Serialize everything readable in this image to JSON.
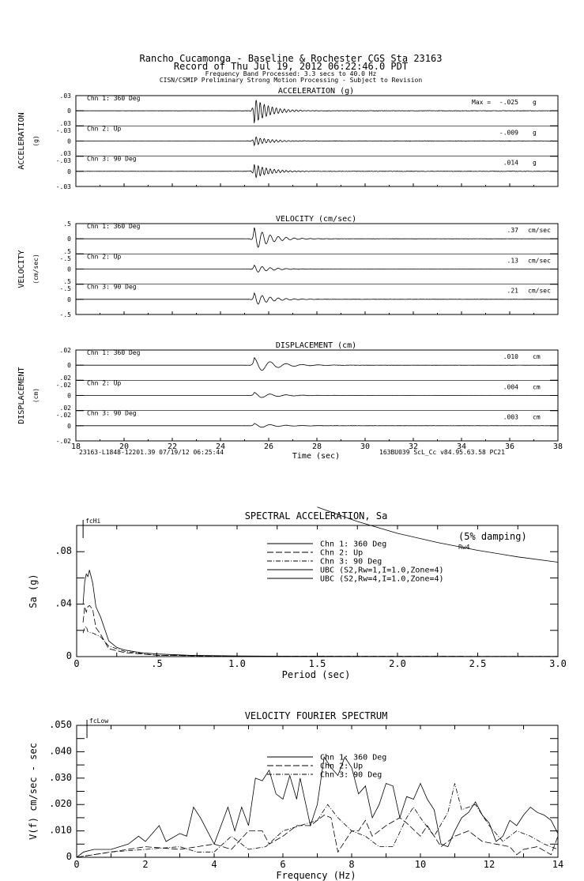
{
  "header": {
    "line1": "Rancho Cucamonga - Baseline & Rochester     CGS Sta 23163",
    "line2": "Record of Thu Jul 19, 2012 06:22:46.0 PDT",
    "line3": "Frequency Band Processed: 3.3 secs to 40.0 Hz",
    "line4": "CISN/CSMIP Preliminary Strong Motion Processing - Subject to Revision"
  },
  "footer": {
    "left": "23163-L1848-12201.39 07/19/12 06:25:44",
    "right": "163BU039  ScL_Cc  v84.95.63.58  PC21"
  },
  "chart_data": [
    {
      "type": "line",
      "title": "ACCELERATION (g)",
      "ylabel": "ACCELERATION",
      "yunit": "(g)",
      "max_prefix": "Max =",
      "ytick_labels": [
        ".03",
        "0",
        "-.03"
      ],
      "ylim": [
        -0.03,
        0.03
      ],
      "xlim": [
        18,
        38
      ],
      "peak_time": 25.4,
      "channels": [
        {
          "name": "Chn 1: 360 Deg",
          "max": "-.025",
          "unit": "g",
          "peak": -0.025
        },
        {
          "name": "Chn 2: Up",
          "max": "-.009",
          "unit": "g",
          "peak": -0.009
        },
        {
          "name": "Chn 3: 90 Deg",
          "max": ".014",
          "unit": "g",
          "peak": 0.014
        }
      ]
    },
    {
      "type": "line",
      "title": "VELOCITY (cm/sec)",
      "ylabel": "VELOCITY",
      "yunit": "(cm/sec)",
      "ytick_labels": [
        ".5",
        "0",
        "-.5"
      ],
      "ylim": [
        -0.5,
        0.5
      ],
      "xlim": [
        18,
        38
      ],
      "peak_time": 25.4,
      "channels": [
        {
          "name": "Chn 1: 360 Deg",
          "max": ".37",
          "unit": "cm/sec",
          "peak": 0.37
        },
        {
          "name": "Chn 2: Up",
          "max": ".13",
          "unit": "cm/sec",
          "peak": 0.13
        },
        {
          "name": "Chn 3: 90 Deg",
          "max": ".21",
          "unit": "cm/sec",
          "peak": 0.21
        }
      ]
    },
    {
      "type": "line",
      "title": "DISPLACEMENT (cm)",
      "ylabel": "DISPLACEMENT",
      "yunit": "(cm)",
      "ytick_labels": [
        ".02",
        "0",
        "-.02"
      ],
      "ylim": [
        -0.02,
        0.02
      ],
      "xlim": [
        18,
        38
      ],
      "xlabel": "Time (sec)",
      "xtick_labels": [
        "18",
        "20",
        "22",
        "24",
        "26",
        "28",
        "30",
        "32",
        "34",
        "36",
        "38"
      ],
      "peak_time": 25.4,
      "channels": [
        {
          "name": "Chn 1: 360 Deg",
          "max": ".010",
          "unit": "cm",
          "peak": 0.01
        },
        {
          "name": "Chn 2: Up",
          "max": ".004",
          "unit": "cm",
          "peak": 0.004
        },
        {
          "name": "Chn 3: 90 Deg",
          "max": ".003",
          "unit": "cm",
          "peak": 0.003
        }
      ]
    },
    {
      "type": "line",
      "title": "SPECTRAL ACCELERATION, Sa",
      "note": "(5% damping)",
      "curve_label": "Rw4",
      "marker": "fcHi",
      "marker_x": 0.04,
      "xlabel": "Period (sec)",
      "ylabel": "Sa (g)",
      "xlim": [
        0,
        3.0
      ],
      "ylim": [
        0,
        0.1
      ],
      "xtick_labels": [
        "0",
        ".5",
        "1.0",
        "1.5",
        "2.0",
        "2.5",
        "3.0"
      ],
      "ytick_labels": [
        ".08",
        ".04",
        "0"
      ],
      "legend": "top-center",
      "series": [
        {
          "name": "Chn 1: 360 Deg",
          "style": "solid",
          "points": [
            [
              0.04,
              0.04
            ],
            [
              0.05,
              0.057
            ],
            [
              0.06,
              0.063
            ],
            [
              0.07,
              0.061
            ],
            [
              0.08,
              0.066
            ],
            [
              0.1,
              0.056
            ],
            [
              0.12,
              0.038
            ],
            [
              0.15,
              0.03
            ],
            [
              0.2,
              0.012
            ],
            [
              0.25,
              0.007
            ],
            [
              0.3,
              0.005
            ],
            [
              0.4,
              0.003
            ],
            [
              0.5,
              0.002
            ],
            [
              0.7,
              0.001
            ],
            [
              1.0,
              0.0005
            ],
            [
              1.5,
              0.0002
            ],
            [
              3.0,
              0.0001
            ]
          ]
        },
        {
          "name": "Chn 2: Up",
          "style": "dashed",
          "points": [
            [
              0.04,
              0.026
            ],
            [
              0.05,
              0.038
            ],
            [
              0.06,
              0.034
            ],
            [
              0.07,
              0.038
            ],
            [
              0.08,
              0.039
            ],
            [
              0.1,
              0.036
            ],
            [
              0.12,
              0.022
            ],
            [
              0.15,
              0.017
            ],
            [
              0.2,
              0.006
            ],
            [
              0.3,
              0.003
            ],
            [
              0.5,
              0.001
            ],
            [
              1.0,
              0.0003
            ],
            [
              3.0,
              0.0001
            ]
          ]
        },
        {
          "name": "Chn 3: 90 Deg",
          "style": "dashdot",
          "points": [
            [
              0.04,
              0.018
            ],
            [
              0.05,
              0.022
            ],
            [
              0.06,
              0.023
            ],
            [
              0.07,
              0.019
            ],
            [
              0.1,
              0.018
            ],
            [
              0.15,
              0.015
            ],
            [
              0.2,
              0.008
            ],
            [
              0.3,
              0.004
            ],
            [
              0.5,
              0.001
            ],
            [
              1.0,
              0.0003
            ],
            [
              3.0,
              0.0001
            ]
          ]
        },
        {
          "name": "UBC (S2,Rw=1,I=1.0,Zone=4)",
          "style": "solid",
          "points": []
        },
        {
          "name": "UBC (S2,Rw=4,I=1.0,Zone=4)",
          "style": "solid",
          "points": [
            [
              1.5,
              0.114
            ],
            [
              1.75,
              0.103
            ],
            [
              2.0,
              0.094
            ],
            [
              2.25,
              0.087
            ],
            [
              2.5,
              0.081
            ],
            [
              2.75,
              0.076
            ],
            [
              3.0,
              0.072
            ]
          ]
        }
      ]
    },
    {
      "type": "line",
      "title": "VELOCITY FOURIER SPECTRUM",
      "marker": "fcLow",
      "marker_x": 0.3,
      "xlabel": "Frequency (Hz)",
      "ylabel": "V(f)   cm/sec - sec",
      "xlim": [
        0,
        14
      ],
      "ylim": [
        0,
        0.05
      ],
      "xtick_labels": [
        "0",
        "2",
        "4",
        "6",
        "8",
        "10",
        "12",
        "14"
      ],
      "ytick_labels": [
        ".050",
        ".040",
        ".030",
        ".020",
        ".010",
        "0"
      ],
      "legend": "top-center",
      "series": [
        {
          "name": "Chn 1: 360 Deg",
          "style": "solid",
          "points": [
            [
              0,
              0
            ],
            [
              0.2,
              0.002
            ],
            [
              0.5,
              0.003
            ],
            [
              1,
              0.003
            ],
            [
              1.5,
              0.005
            ],
            [
              1.8,
              0.008
            ],
            [
              2,
              0.006
            ],
            [
              2.4,
              0.012
            ],
            [
              2.6,
              0.006
            ],
            [
              3,
              0.009
            ],
            [
              3.2,
              0.008
            ],
            [
              3.4,
              0.019
            ],
            [
              3.6,
              0.015
            ],
            [
              3.8,
              0.01
            ],
            [
              4,
              0.005
            ],
            [
              4.2,
              0.012
            ],
            [
              4.4,
              0.019
            ],
            [
              4.6,
              0.01
            ],
            [
              4.8,
              0.019
            ],
            [
              5,
              0.012
            ],
            [
              5.2,
              0.03
            ],
            [
              5.4,
              0.029
            ],
            [
              5.6,
              0.033
            ],
            [
              5.8,
              0.024
            ],
            [
              6,
              0.022
            ],
            [
              6.2,
              0.031
            ],
            [
              6.4,
              0.022
            ],
            [
              6.5,
              0.03
            ],
            [
              6.8,
              0.012
            ],
            [
              7,
              0.02
            ],
            [
              7.2,
              0.038
            ],
            [
              7.4,
              0.034
            ],
            [
              7.6,
              0.031
            ],
            [
              7.8,
              0.038
            ],
            [
              8,
              0.034
            ],
            [
              8.2,
              0.024
            ],
            [
              8.4,
              0.027
            ],
            [
              8.6,
              0.015
            ],
            [
              8.8,
              0.02
            ],
            [
              9,
              0.028
            ],
            [
              9.2,
              0.027
            ],
            [
              9.4,
              0.015
            ],
            [
              9.6,
              0.023
            ],
            [
              9.8,
              0.022
            ],
            [
              10,
              0.028
            ],
            [
              10.2,
              0.022
            ],
            [
              10.4,
              0.018
            ],
            [
              10.6,
              0.005
            ],
            [
              10.8,
              0.004
            ],
            [
              11,
              0.01
            ],
            [
              11.2,
              0.015
            ],
            [
              11.4,
              0.017
            ],
            [
              11.6,
              0.021
            ],
            [
              11.8,
              0.016
            ],
            [
              12,
              0.013
            ],
            [
              12.2,
              0.006
            ],
            [
              12.4,
              0.008
            ],
            [
              12.6,
              0.014
            ],
            [
              12.8,
              0.012
            ],
            [
              13,
              0.016
            ],
            [
              13.2,
              0.019
            ],
            [
              13.4,
              0.017
            ],
            [
              13.6,
              0.016
            ],
            [
              13.8,
              0.014
            ],
            [
              14,
              0.009
            ]
          ]
        },
        {
          "name": "Chn 2: Up",
          "style": "dashed",
          "points": [
            [
              0,
              0
            ],
            [
              1,
              0.002
            ],
            [
              2,
              0.004
            ],
            [
              3,
              0.003
            ],
            [
              4,
              0.005
            ],
            [
              4.5,
              0.003
            ],
            [
              5,
              0.01
            ],
            [
              5.4,
              0.01
            ],
            [
              5.6,
              0.005
            ],
            [
              6,
              0.008
            ],
            [
              6.4,
              0.012
            ],
            [
              6.8,
              0.012
            ],
            [
              7.2,
              0.016
            ],
            [
              7.4,
              0.015
            ],
            [
              7.6,
              0.002
            ],
            [
              8,
              0.01
            ],
            [
              8.2,
              0.01
            ],
            [
              8.4,
              0.014
            ],
            [
              8.6,
              0.008
            ],
            [
              9,
              0.012
            ],
            [
              9.4,
              0.015
            ],
            [
              9.6,
              0.013
            ],
            [
              10,
              0.008
            ],
            [
              10.2,
              0.012
            ],
            [
              10.6,
              0.004
            ],
            [
              11,
              0.008
            ],
            [
              11.4,
              0.01
            ],
            [
              11.8,
              0.006
            ],
            [
              12.2,
              0.005
            ],
            [
              12.6,
              0.004
            ],
            [
              12.8,
              0.001
            ],
            [
              13,
              0.003
            ],
            [
              13.4,
              0.004
            ],
            [
              13.8,
              0.001
            ],
            [
              14,
              0.008
            ]
          ]
        },
        {
          "name": "Chn 3: 90 Deg",
          "style": "dashdot",
          "points": [
            [
              0,
              0
            ],
            [
              1,
              0.002
            ],
            [
              2,
              0.003
            ],
            [
              3,
              0.004
            ],
            [
              3.5,
              0.002
            ],
            [
              4,
              0.002
            ],
            [
              4.5,
              0.008
            ],
            [
              5,
              0.003
            ],
            [
              5.5,
              0.004
            ],
            [
              6,
              0.01
            ],
            [
              6.5,
              0.012
            ],
            [
              7,
              0.014
            ],
            [
              7.3,
              0.02
            ],
            [
              7.6,
              0.015
            ],
            [
              8,
              0.01
            ],
            [
              8.4,
              0.008
            ],
            [
              8.8,
              0.004
            ],
            [
              9.2,
              0.004
            ],
            [
              9.6,
              0.015
            ],
            [
              9.8,
              0.019
            ],
            [
              10,
              0.015
            ],
            [
              10.4,
              0.008
            ],
            [
              10.8,
              0.017
            ],
            [
              11,
              0.028
            ],
            [
              11.2,
              0.018
            ],
            [
              11.6,
              0.02
            ],
            [
              12,
              0.012
            ],
            [
              12.4,
              0.006
            ],
            [
              12.8,
              0.01
            ],
            [
              13.2,
              0.008
            ],
            [
              13.6,
              0.005
            ],
            [
              14,
              0.003
            ]
          ]
        }
      ]
    }
  ]
}
